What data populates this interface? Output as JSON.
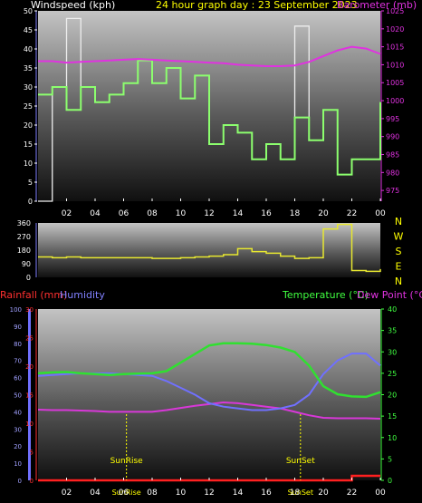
{
  "colors": {
    "wind_gust": "#eeeeee",
    "wind_avg": "#8cff6e",
    "barometer": "#e032e0",
    "direction": "#e8e830",
    "rainfall": "#ff2020",
    "humidity": "#7070ff",
    "temperature": "#30e030",
    "dewpoint": "#d838d8",
    "title": "#ffff00",
    "tick": "#ffffff",
    "axis_left": "#a0a0ff",
    "axis_red": "#ff3030",
    "axis_green": "#40ff40"
  },
  "x_ticks": [
    "02",
    "04",
    "06",
    "08",
    "10",
    "12",
    "14",
    "16",
    "18",
    "20",
    "22",
    "00"
  ],
  "chart_data": [
    {
      "id": "wind",
      "type": "line",
      "title": "24 hour graph day : 23 September 2023",
      "ylabel_left": "Windspeed (kph)",
      "ylabel_right": "Barometer (mb)",
      "ylim_left": [
        0,
        50
      ],
      "yticks_left": [
        0,
        5,
        10,
        15,
        20,
        25,
        30,
        35,
        40,
        45,
        50
      ],
      "ylim_right": [
        972,
        1025
      ],
      "yticks_right": [
        975,
        980,
        985,
        990,
        995,
        1000,
        1005,
        1010,
        1015,
        1020,
        1025
      ],
      "x_hours": [
        0.0,
        1.0,
        2.0,
        3.0,
        4.0,
        5.0,
        6.0,
        7.0,
        8.0,
        9.0,
        10.0,
        11.0,
        12.0,
        13.0,
        14.0,
        15.0,
        16.0,
        17.0,
        18.0,
        19.0,
        20.0,
        21.0,
        22.0,
        23.0,
        24.0
      ],
      "series": [
        {
          "name": "gust",
          "values": [
            0,
            30,
            48,
            30,
            26,
            28,
            31,
            37,
            31,
            35,
            27,
            33,
            15,
            20,
            18,
            11,
            15,
            11,
            46,
            16,
            24,
            7,
            11,
            11,
            26
          ]
        },
        {
          "name": "average",
          "values": [
            28,
            30,
            24,
            30,
            26,
            28,
            31,
            37,
            31,
            35,
            27,
            33,
            15,
            20,
            18,
            11,
            15,
            11,
            22,
            16,
            24,
            7,
            11,
            11,
            26
          ]
        },
        {
          "name": "barometer",
          "values": [
            1011.0,
            1011.0,
            1010.6,
            1010.8,
            1011.0,
            1011.2,
            1011.4,
            1011.6,
            1011.4,
            1011.2,
            1011.0,
            1010.8,
            1010.6,
            1010.4,
            1010.0,
            1009.8,
            1009.6,
            1009.6,
            1009.8,
            1010.8,
            1012.4,
            1014.0,
            1015.0,
            1014.5,
            1013.0
          ]
        }
      ]
    },
    {
      "id": "direction",
      "type": "line",
      "ylim": [
        0,
        360
      ],
      "yticks": [
        0,
        90,
        180,
        270,
        360
      ],
      "compass": [
        "N",
        "W",
        "S",
        "E",
        "N"
      ],
      "x_hours": [
        0.0,
        1.0,
        2.0,
        3.0,
        4.0,
        5.0,
        6.0,
        7.0,
        8.0,
        9.0,
        10.0,
        11.0,
        12.0,
        13.0,
        14.0,
        15.0,
        16.0,
        17.0,
        18.0,
        19.0,
        20.0,
        21.0,
        22.0,
        23.0,
        24.0
      ],
      "values": [
        135,
        130,
        135,
        130,
        130,
        130,
        130,
        130,
        125,
        125,
        130,
        135,
        140,
        150,
        190,
        170,
        160,
        140,
        125,
        130,
        320,
        350,
        45,
        40,
        55
      ]
    },
    {
      "id": "temp",
      "type": "line",
      "labels": {
        "rainfall": "Rainfall (mm)",
        "humidity": "Humidity",
        "temperature": "Temperature (°C)",
        "dewpoint": "Dew Point (°C)"
      },
      "ylim_humidity": [
        0,
        100
      ],
      "yticks_humidity": [
        0,
        10,
        20,
        30,
        40,
        50,
        60,
        70,
        80,
        90,
        100
      ],
      "ylim_rain": [
        0,
        30
      ],
      "yticks_rain": [
        0,
        5,
        10,
        15,
        20,
        25,
        30
      ],
      "ylim_temp": [
        0,
        40
      ],
      "yticks_temp": [
        0,
        5,
        10,
        15,
        20,
        25,
        30,
        35,
        40
      ],
      "x_hours": [
        0.0,
        1.0,
        2.0,
        3.0,
        4.0,
        5.0,
        6.0,
        7.0,
        8.0,
        9.0,
        10.0,
        11.0,
        12.0,
        13.0,
        14.0,
        15.0,
        16.0,
        17.0,
        18.0,
        19.0,
        20.0,
        21.0,
        22.0,
        23.0,
        24.0
      ],
      "series": [
        {
          "name": "temperature",
          "values": [
            25,
            25.2,
            25.3,
            25,
            24.8,
            24.6,
            24.8,
            24.9,
            25,
            25.5,
            27.5,
            29.5,
            31.5,
            32,
            32,
            31.9,
            31.6,
            31,
            30,
            26.8,
            22,
            20.1,
            19.6,
            19.5,
            20.6
          ]
        },
        {
          "name": "dewpoint",
          "values": [
            16.5,
            16.4,
            16.4,
            16.3,
            16.2,
            16.0,
            16.0,
            16.0,
            16.0,
            16.4,
            16.9,
            17.4,
            17.8,
            18.2,
            18.0,
            17.6,
            17.2,
            16.8,
            16.0,
            15.2,
            14.6,
            14.5,
            14.5,
            14.5,
            14.4
          ]
        },
        {
          "name": "humidity",
          "values": [
            61,
            61.5,
            62,
            62.5,
            62.5,
            62.5,
            62,
            61.5,
            61,
            58,
            54,
            50,
            45,
            43,
            42,
            41,
            41,
            42,
            44,
            50,
            62,
            70,
            74,
            74,
            67
          ]
        },
        {
          "name": "rainfall",
          "values": [
            0,
            0,
            0,
            0,
            0,
            0,
            0,
            0,
            0,
            0,
            0,
            0,
            0,
            0,
            0,
            0,
            0,
            0,
            0,
            0,
            0,
            0,
            0.8,
            0.8,
            0.8
          ]
        }
      ],
      "events": [
        {
          "label": "SunRise",
          "hour": 6.2,
          "tick_label": "SunRise"
        },
        {
          "label": "SunSet",
          "hour": 18.4,
          "tick_label": "SunSet"
        }
      ]
    }
  ]
}
